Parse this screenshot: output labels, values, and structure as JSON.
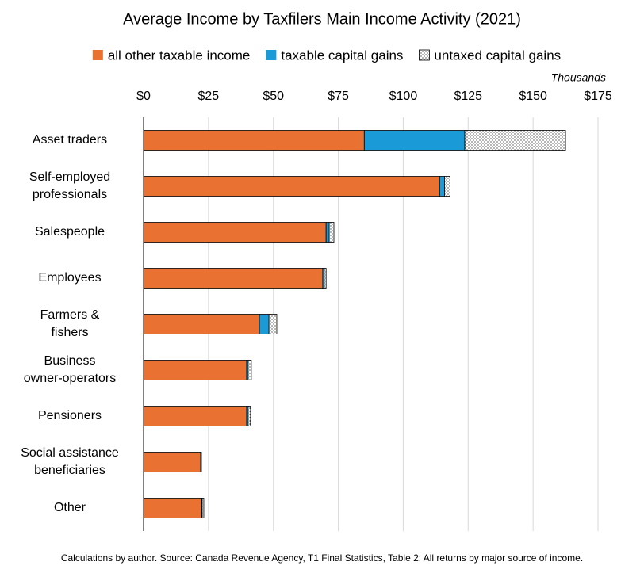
{
  "chart_data": {
    "type": "stacked-barh",
    "title": "Average Income by Taxfilers Main Income Activity (2021)",
    "x_label": "Thousands",
    "source": "Calculations by author. Source: Canada Revenue Agency, T1 Final Statistics, Table 2: All returns by major source of income.",
    "categories": [
      "Asset traders",
      "Self-employed\nprofessionals",
      "Salespeople",
      "Employees",
      "Farmers &\nfishers",
      "Business\nowner-operators",
      "Pensioners",
      "Social assistance\nbeneficiaries",
      "Other"
    ],
    "series": [
      {
        "name": "all other taxable income",
        "color": "#e97132",
        "values": [
          85,
          114,
          70.3,
          69,
          44.6,
          39.7,
          39.7,
          22,
          22.3
        ]
      },
      {
        "name": "taxable capital gains",
        "color": "#1a9ad6",
        "values": [
          38.7,
          1.9,
          1.2,
          0.6,
          3.7,
          0.6,
          0.6,
          0.1,
          0.3
        ]
      },
      {
        "name": "untaxed capital gains",
        "color": "#ffffff",
        "pattern": "dots",
        "values": [
          38.8,
          2.1,
          1.8,
          0.7,
          3,
          1.2,
          0.9,
          0.2,
          0.6
        ]
      }
    ],
    "xlim": [
      0,
      175
    ],
    "xticks": [
      {
        "value": 0,
        "label": "$0"
      },
      {
        "value": 25,
        "label": "$25"
      },
      {
        "value": 50,
        "label": "$50"
      },
      {
        "value": 75,
        "label": "$75"
      },
      {
        "value": 100,
        "label": "$100"
      },
      {
        "value": 125,
        "label": "$125"
      },
      {
        "value": 150,
        "label": "$150"
      },
      {
        "value": 175,
        "label": "$175"
      }
    ],
    "grid": true,
    "legend": "top"
  }
}
